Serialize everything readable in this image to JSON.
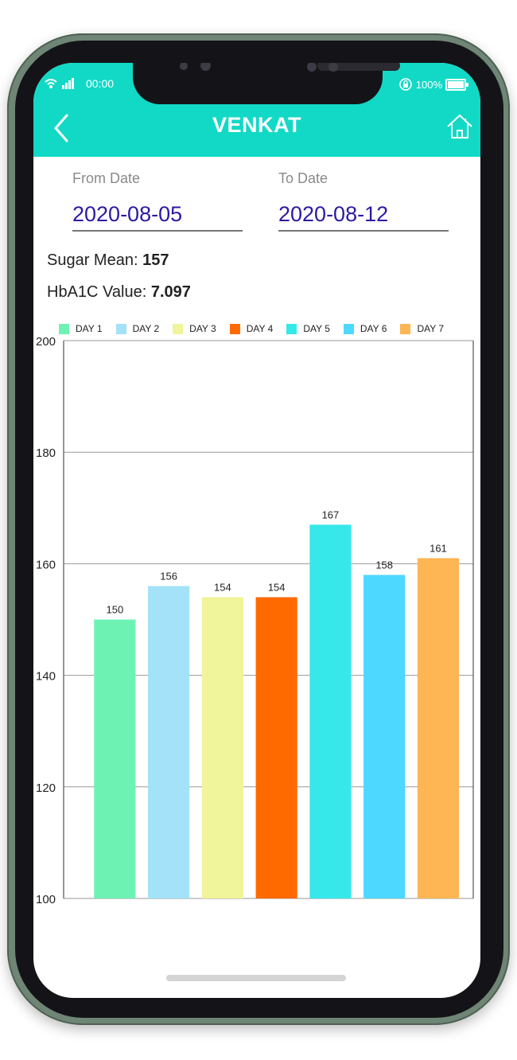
{
  "status": {
    "time": "00:00",
    "battery": "100%"
  },
  "appbar": {
    "title": "VENKAT",
    "back_icon": "chevron-left-icon",
    "home_icon": "home-icon"
  },
  "dates": {
    "from_label": "From Date",
    "from_value": "2020-08-05",
    "to_label": "To Date",
    "to_value": "2020-08-12"
  },
  "stats": {
    "sugar_mean_label": "Sugar Mean:",
    "sugar_mean_value": "157",
    "hba1c_label": "HbA1C Value:",
    "hba1c_value": "7.097"
  },
  "chart_data": {
    "type": "bar",
    "categories": [
      "DAY 1",
      "DAY 2",
      "DAY 3",
      "DAY 4",
      "DAY 5",
      "DAY 6",
      "DAY 7"
    ],
    "values": [
      150,
      156,
      154,
      154,
      167,
      158,
      161
    ],
    "colors": [
      "#6ef2b3",
      "#a3e2f8",
      "#f0f49a",
      "#ff6a00",
      "#36e8ea",
      "#4dd8ff",
      "#fdb653"
    ],
    "ylim": [
      100,
      200
    ],
    "yticks": [
      100,
      120,
      140,
      160,
      180,
      200
    ],
    "grid": true,
    "legend": "top"
  }
}
